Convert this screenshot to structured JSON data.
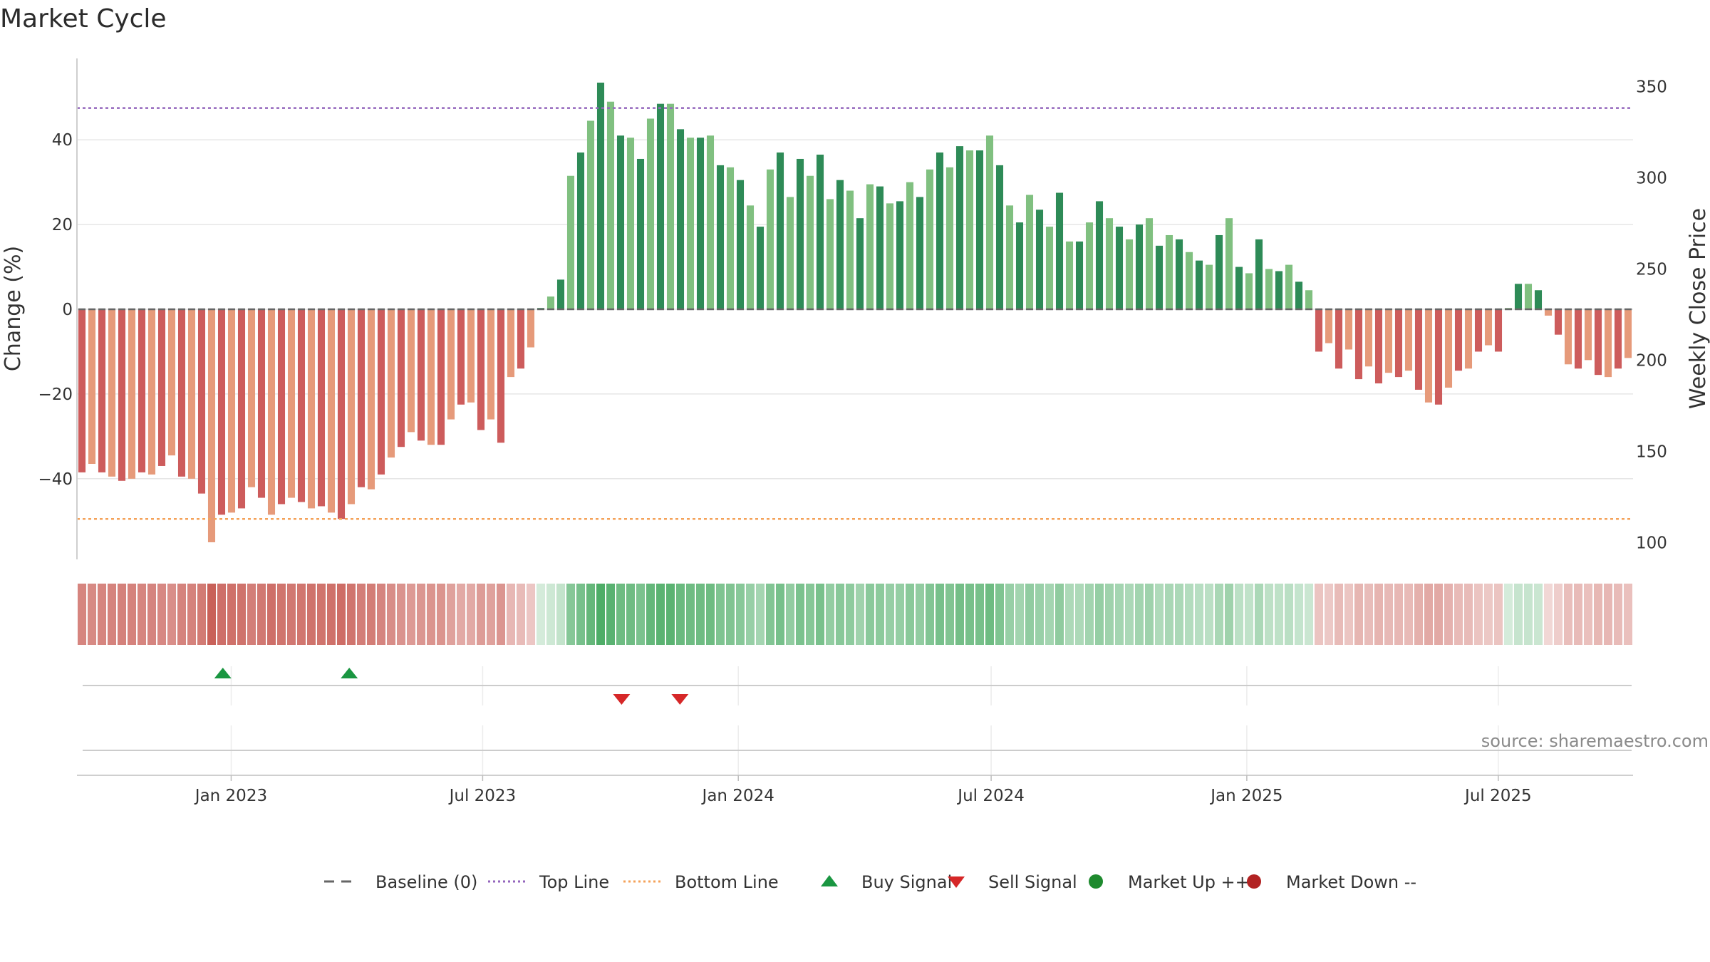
{
  "chart_data": {
    "type": "bar",
    "title": "Market Cycle",
    "ylabel": "Change (%)",
    "y2label": "Weekly Close Price",
    "ylim": [
      -59,
      59
    ],
    "y2lim": [
      92,
      360
    ],
    "yticks": [
      -40,
      -20,
      0,
      20,
      40
    ],
    "ytick_labels": [
      "−40",
      "−20",
      "0",
      "20",
      "40"
    ],
    "y2ticks": [
      100,
      150,
      200,
      250,
      300,
      350
    ],
    "y2tick_labels": [
      "100",
      "150",
      "200",
      "250",
      "300",
      "350"
    ],
    "top_line": 47.5,
    "bottom_line": -49.5,
    "grid": true,
    "x_axis": {
      "start": "2022-09-12",
      "end": "2025-10-06",
      "ticks": [
        {
          "date": "2023-01-01",
          "label": "Jan 2023"
        },
        {
          "date": "2023-07-01",
          "label": "Jul 2023"
        },
        {
          "date": "2024-01-01",
          "label": "Jan 2024"
        },
        {
          "date": "2024-07-01",
          "label": "Jul 2024"
        },
        {
          "date": "2025-01-01",
          "label": "Jan 2025"
        },
        {
          "date": "2025-07-01",
          "label": "Jul 2025"
        }
      ]
    },
    "weekly_change": [
      -38.5,
      -36.5,
      -38.5,
      -39.5,
      -40.5,
      -40,
      -38.5,
      -39,
      -37,
      -34.5,
      -39.5,
      -40,
      -43.5,
      -55,
      -48.5,
      -48,
      -47,
      -42,
      -44.5,
      -48.5,
      -46,
      -44.5,
      -45.5,
      -47,
      -46.5,
      -48,
      -49.5,
      -46,
      -42,
      -42.5,
      -39,
      -35,
      -32.5,
      -29,
      -31,
      -32,
      -32,
      -26,
      -22.5,
      -22,
      -28.5,
      -26,
      -31.5,
      -16,
      -14,
      -9,
      0.3,
      3,
      7,
      31.5,
      37,
      44.5,
      53.5,
      49,
      41,
      40.5,
      35.5,
      45,
      48.5,
      48.5,
      42.5,
      40.5,
      40.5,
      41,
      34,
      33.5,
      30.5,
      24.5,
      19.5,
      33,
      37,
      26.5,
      35.5,
      31.5,
      36.5,
      26,
      30.5,
      28,
      21.5,
      29.5,
      29,
      25,
      25.5,
      30,
      26.5,
      33,
      37,
      33.5,
      38.5,
      37.5,
      37.5,
      41,
      34,
      24.5,
      20.5,
      27,
      23.5,
      19.5,
      27.5,
      16,
      16,
      20.5,
      25.5,
      21.5,
      19.5,
      16.5,
      20,
      21.5,
      15,
      17.5,
      16.5,
      13.5,
      11.5,
      10.5,
      17.5,
      21.5,
      10,
      8.5,
      16.5,
      9.5,
      9,
      10.5,
      6.5,
      4.5,
      -10,
      -8,
      -14,
      -9.5,
      -16.5,
      -13.5,
      -17.5,
      -15,
      -16,
      -14.5,
      -19,
      -22,
      -22.5,
      -18.5,
      -14.5,
      -14,
      -10,
      -8.5,
      -10,
      0.3,
      6,
      6,
      4.5,
      -1.5,
      -6,
      -13,
      -14,
      -12,
      -15.5,
      -16,
      -14,
      -11.5
    ],
    "signals": {
      "buy": [
        "2022-12-26",
        "2023-03-27"
      ],
      "sell": [
        "2023-10-09",
        "2023-11-20"
      ],
      "market_up": [],
      "market_down": []
    },
    "colors": {
      "down_strong": "#cd5c5c",
      "down_weak": "#e69a7a",
      "up_strong": "#2e8b57",
      "up_weak": "#80c080",
      "top_line": "#9467bd",
      "bottom_line": "#f4a259",
      "buy": "#1a9641",
      "sell": "#d62728",
      "baseline": "#666666",
      "grid": "#e6e6e6"
    },
    "legend": {
      "position": "bottom-center",
      "items": [
        {
          "label": "Baseline (0)",
          "marker": "dash",
          "color": "#666666"
        },
        {
          "label": "Top Line",
          "marker": "dotted",
          "color": "#9467bd"
        },
        {
          "label": "Bottom Line",
          "marker": "dotted",
          "color": "#f4a259"
        },
        {
          "label": "Buy Signal",
          "marker": "triangle-up",
          "color": "#1a9641"
        },
        {
          "label": "Sell Signal",
          "marker": "triangle-down",
          "color": "#d62728"
        },
        {
          "label": "Market Up ++",
          "marker": "circle",
          "color": "#1e8a2e"
        },
        {
          "label": "Market Down --",
          "marker": "circle",
          "color": "#b22222"
        }
      ]
    },
    "source": "source: sharemaestro.com"
  }
}
